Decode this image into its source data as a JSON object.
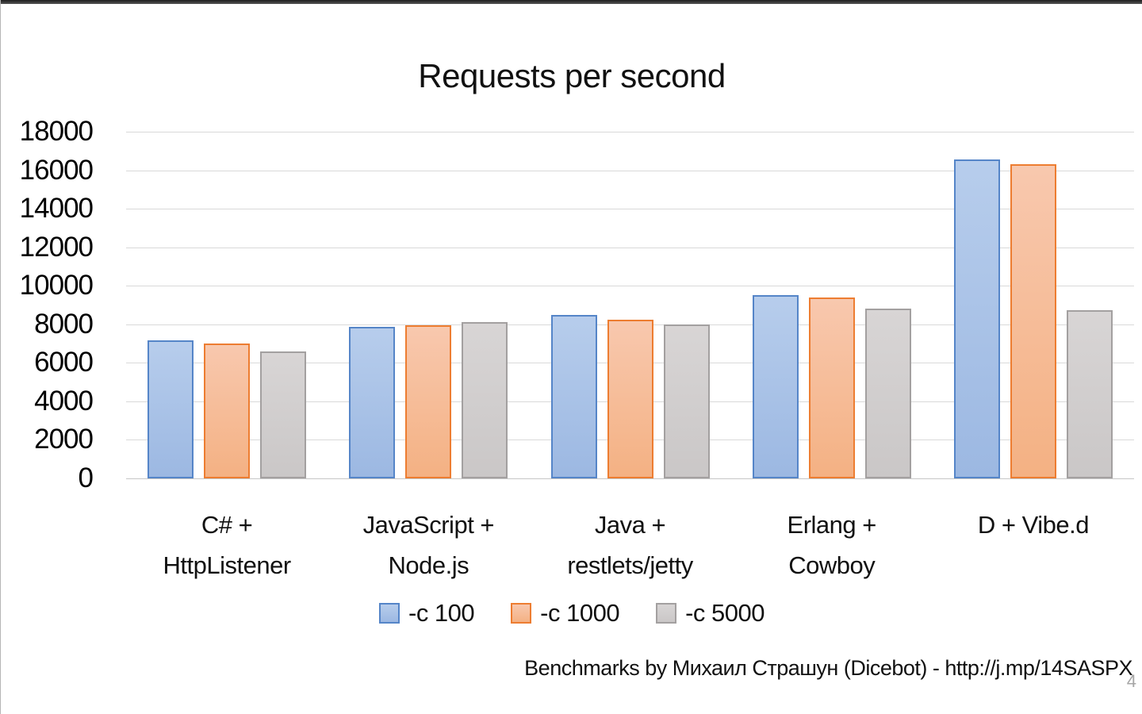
{
  "slide": {
    "title": "Requests per second",
    "footer": "Benchmarks by Михаил Страшун (Dicebot) - http://j.mp/14SASPX",
    "slide_number": "4"
  },
  "chart_data": {
    "type": "bar",
    "title": "Requests per second",
    "categories": [
      "C# +\nHttpListener",
      "JavaScript +\nNode.js",
      "Java +\nrestlets/jetty",
      "Erlang +\nCowboy",
      "D + Vibe.d"
    ],
    "series": [
      {
        "name": "-c 100",
        "values": [
          7150,
          7850,
          8500,
          9500,
          16550
        ],
        "fill_top": "#b7cdec",
        "fill_bottom": "#9cb8e2",
        "border": "#5585c8"
      },
      {
        "name": "-c 1000",
        "values": [
          7000,
          7950,
          8250,
          9400,
          16300
        ],
        "fill_top": "#f8c8ae",
        "fill_bottom": "#f4b183",
        "border": "#ed7d31"
      },
      {
        "name": "-c 5000",
        "values": [
          6600,
          8100,
          8000,
          8800,
          8750
        ],
        "fill_top": "#d8d5d5",
        "fill_bottom": "#cac7c7",
        "border": "#a3a0a0"
      }
    ],
    "ylim": [
      0,
      18000
    ],
    "ytick_step": 2000,
    "grid": true,
    "legend_position": "bottom",
    "gridline_color": "#d9d9d9"
  }
}
